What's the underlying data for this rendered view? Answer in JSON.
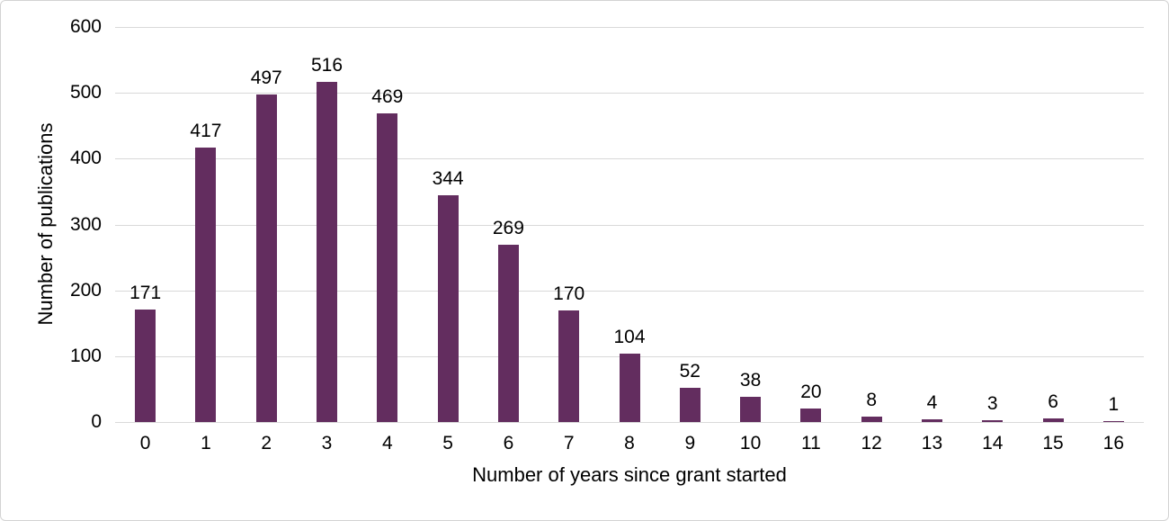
{
  "chart_data": {
    "type": "bar",
    "title": "",
    "categories": [
      "0",
      "1",
      "2",
      "3",
      "4",
      "5",
      "6",
      "7",
      "8",
      "9",
      "10",
      "11",
      "12",
      "13",
      "14",
      "15",
      "16"
    ],
    "values": [
      171,
      417,
      497,
      516,
      469,
      344,
      269,
      170,
      104,
      52,
      38,
      20,
      8,
      4,
      3,
      6,
      1
    ],
    "xlabel": "Number of years since grant started",
    "ylabel": "Number of publications",
    "ylim": [
      0,
      600
    ],
    "yticks": [
      0,
      100,
      200,
      300,
      400,
      500,
      600
    ],
    "grid": true,
    "legend": "none",
    "bar_color": "#632d5f",
    "gridline_color": "#d9d9d9",
    "text_color": "#000000"
  }
}
